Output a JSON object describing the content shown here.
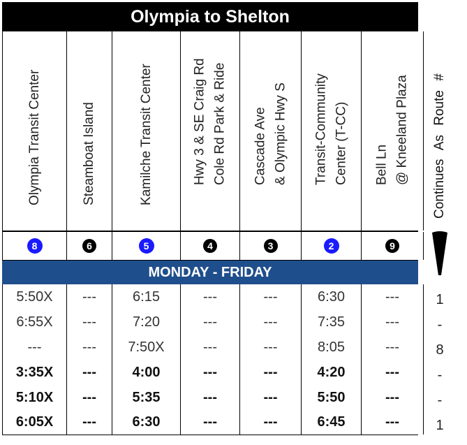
{
  "title": "Olympia to Shelton",
  "stops": [
    {
      "lines": [
        "Olympia Transit Center"
      ],
      "route": "8",
      "color": "blue"
    },
    {
      "lines": [
        "Steamboat Island"
      ],
      "route": "6",
      "color": "black"
    },
    {
      "lines": [
        "Kamilche Transit Center"
      ],
      "route": "5",
      "color": "blue"
    },
    {
      "lines": [
        "Hwy 3 &  SE Craig Rd",
        "Cole Rd Park & Ride"
      ],
      "route": "4",
      "color": "black"
    },
    {
      "lines": [
        "Cascade Ave",
        "& Olympic Hwy S"
      ],
      "route": "3",
      "color": "black"
    },
    {
      "lines": [
        "Transit-Community",
        "Center (T-CC)"
      ],
      "route": "2",
      "color": "blue"
    },
    {
      "lines": [
        "Bell Ln",
        "@ Kneeland  Plaza"
      ],
      "route": "9",
      "color": "black"
    }
  ],
  "continues_label": "Continues  As  Route  #",
  "day_label": "MONDAY - FRIDAY",
  "trips": [
    {
      "times": [
        "5:50X",
        "---",
        "6:15",
        "---",
        "---",
        "6:30",
        "---"
      ],
      "continues": "1",
      "bold": false
    },
    {
      "times": [
        "6:55X",
        "---",
        "7:20",
        "---",
        "---",
        "7:35",
        "---"
      ],
      "continues": "-",
      "bold": false
    },
    {
      "times": [
        "---",
        "---",
        "7:50X",
        "---",
        "---",
        "8:05",
        "---"
      ],
      "continues": "8",
      "bold": false
    },
    {
      "times": [
        "3:35X",
        "---",
        "4:00",
        "---",
        "---",
        "4:20",
        "---"
      ],
      "continues": "-",
      "bold": true
    },
    {
      "times": [
        "5:10X",
        "---",
        "5:35",
        "---",
        "---",
        "5:50",
        "---"
      ],
      "continues": "-",
      "bold": true
    },
    {
      "times": [
        "6:05X",
        "---",
        "6:30",
        "---",
        "---",
        "6:45",
        "---"
      ],
      "continues": "1",
      "bold": true
    }
  ],
  "colors": {
    "blue_badge": "#1a1aff",
    "black_badge": "#000000",
    "day_bar": "#1f4e8c",
    "title_bar": "#000000"
  }
}
